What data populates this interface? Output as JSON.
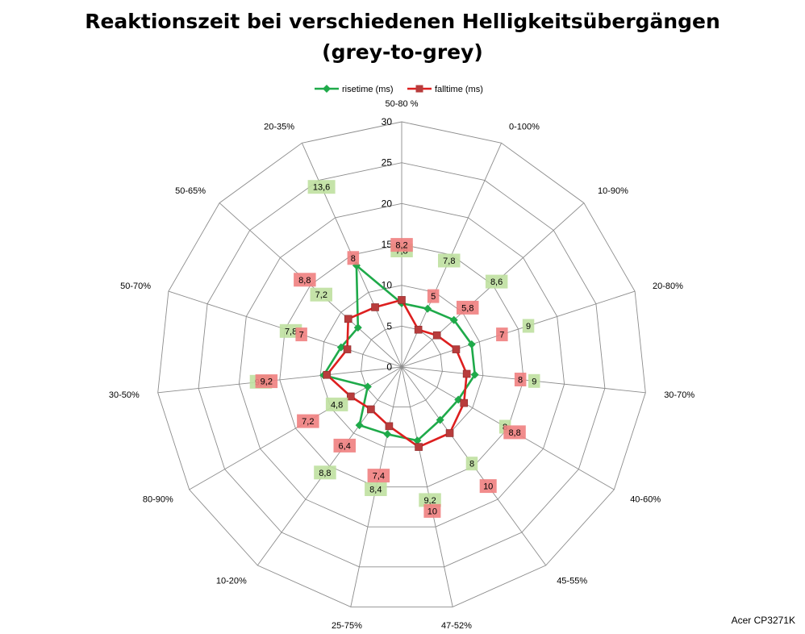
{
  "chart_data": {
    "type": "radar",
    "title": [
      "Reaktionszeit bei verschiedenen Helligkeitsübergängen",
      "(grey-to-grey)"
    ],
    "categories": [
      "50-80 %",
      "0-100%",
      "10-90%",
      "20-80%",
      "30-70%",
      "40-60%",
      "45-55%",
      "47-52%",
      "25-75%",
      "10-20%",
      "80-90%",
      "30-50%",
      "50-70%",
      "50-65%",
      "20-35%"
    ],
    "radial_ticks": [
      "0",
      "5",
      "10",
      "15",
      "20",
      "25",
      "30"
    ],
    "rmax": 30,
    "grid": true,
    "legend_position": "top",
    "series": [
      {
        "name": "risetime (ms)",
        "color": "#1faa4a",
        "marker": "diamond",
        "label_bg": "#bfe0a0",
        "values": [
          7.8,
          7.8,
          8.6,
          9,
          9,
          8,
          8,
          9.2,
          8.4,
          8.8,
          4.8,
          9.6,
          7.8,
          7.2,
          13.6
        ],
        "labels": [
          "7,8",
          "7,8",
          "8,6",
          "9",
          "9",
          "8",
          "8",
          "9,2",
          "8,4",
          "8,8",
          "4,8",
          "9,6",
          "7,8",
          "7,2",
          "13,6"
        ]
      },
      {
        "name": "falltime (ms)",
        "color": "#dd1f1f",
        "marker": "square",
        "label_bg": "#f08080",
        "values": [
          8.2,
          5,
          5.8,
          7,
          8,
          8.8,
          10,
          10,
          7.4,
          6.4,
          7.2,
          9.2,
          7,
          8.8,
          8
        ],
        "labels": [
          "8,2",
          "5",
          "5,8",
          "7",
          "8",
          "8,8",
          "10",
          "10",
          "7,4",
          "6,4",
          "7,2",
          "9,2",
          "7",
          "8,8",
          "8"
        ]
      }
    ]
  },
  "footnote": "Acer CP3271K"
}
